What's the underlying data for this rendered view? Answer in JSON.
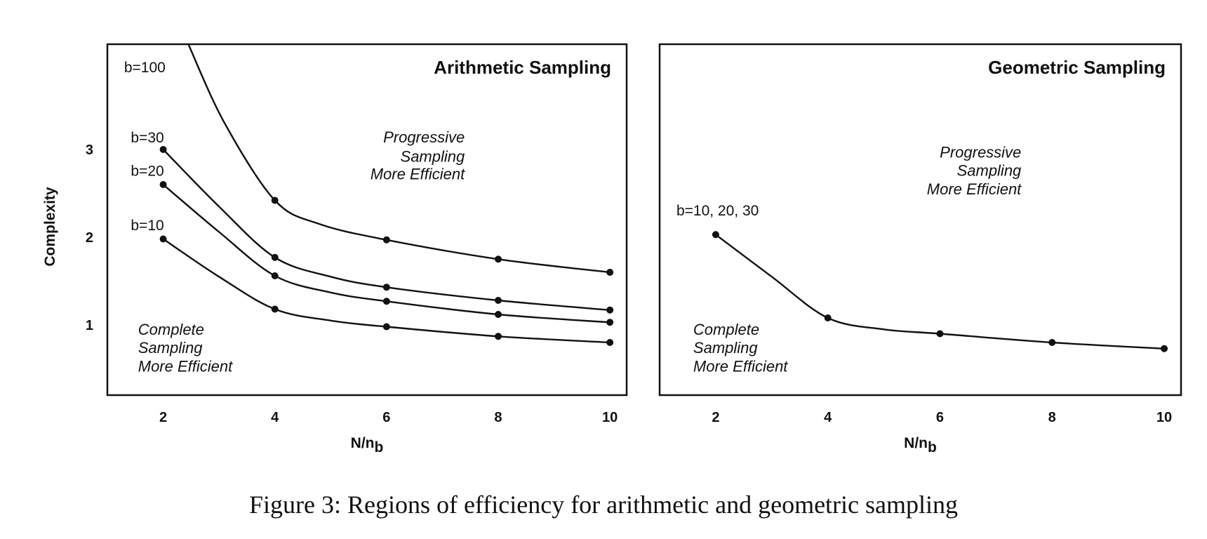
{
  "caption": "Figure 3: Regions of efficiency for arithmetic and geometric sampling",
  "chart_data": [
    {
      "type": "line",
      "title": "Arithmetic Sampling",
      "xlabel": "N/n",
      "xlabel_subscript": "b",
      "ylabel": "Complexity",
      "xticks": [
        2,
        4,
        6,
        8,
        10
      ],
      "yticks": [
        1,
        2,
        3
      ],
      "xlim": [
        1,
        10.3
      ],
      "ylim": [
        0.2,
        4.2
      ],
      "annotations": [
        {
          "lines": [
            "Progressive",
            "Sampling",
            "More Efficient"
          ],
          "x": 7.4,
          "y": [
            3.08,
            2.86,
            2.66
          ],
          "anchor": "end"
        },
        {
          "lines": [
            "Complete",
            "Sampling",
            "More Efficient"
          ],
          "x": 1.55,
          "y": [
            0.89,
            0.68,
            0.47
          ],
          "anchor": "start"
        }
      ],
      "series": [
        {
          "name": "b=100",
          "x": [
            2.45,
            3.1,
            4,
            4.8,
            6,
            8,
            10
          ],
          "y": [
            4.2,
            3.3,
            2.42,
            2.15,
            1.97,
            1.75,
            1.6
          ],
          "markers": [
            4,
            6,
            8,
            10
          ],
          "label_pos": {
            "x": 1.3,
            "y": 3.88
          }
        },
        {
          "name": "b=30",
          "x": [
            2,
            3,
            4,
            5,
            6,
            8,
            10
          ],
          "y": [
            3.0,
            2.35,
            1.77,
            1.55,
            1.43,
            1.28,
            1.17
          ],
          "markers": [
            2,
            4,
            6,
            8,
            10
          ],
          "label_pos": {
            "x": 1.42,
            "y": 3.08
          }
        },
        {
          "name": "b=20",
          "x": [
            2,
            3,
            4,
            5,
            6,
            8,
            10
          ],
          "y": [
            2.6,
            2.06,
            1.56,
            1.37,
            1.27,
            1.12,
            1.03
          ],
          "markers": [
            2,
            4,
            6,
            8,
            10
          ],
          "label_pos": {
            "x": 1.42,
            "y": 2.7
          }
        },
        {
          "name": "b=10",
          "x": [
            2,
            3,
            4,
            5,
            6,
            8,
            10
          ],
          "y": [
            1.98,
            1.55,
            1.18,
            1.05,
            0.98,
            0.87,
            0.8
          ],
          "markers": [
            2,
            4,
            6,
            8,
            10
          ],
          "label_pos": {
            "x": 1.42,
            "y": 2.08
          }
        }
      ]
    },
    {
      "type": "line",
      "title": "Geometric Sampling",
      "xlabel": "N/n",
      "xlabel_subscript": "b",
      "ylabel": "",
      "xticks": [
        2,
        4,
        6,
        8,
        10
      ],
      "yticks": [],
      "xlim": [
        1,
        10.3
      ],
      "ylim": [
        0.2,
        4.2
      ],
      "annotations": [
        {
          "lines": [
            "Progressive",
            "Sampling",
            "More Efficient"
          ],
          "x": 7.45,
          "y": [
            2.91,
            2.7,
            2.49
          ],
          "anchor": "end"
        },
        {
          "lines": [
            "Complete",
            "Sampling",
            "More Efficient"
          ],
          "x": 1.6,
          "y": [
            0.89,
            0.68,
            0.47
          ],
          "anchor": "start"
        }
      ],
      "series": [
        {
          "name": "b=10, 20, 30",
          "x": [
            2,
            3,
            4,
            5,
            6,
            8,
            10
          ],
          "y": [
            2.03,
            1.55,
            1.08,
            0.95,
            0.9,
            0.8,
            0.73
          ],
          "markers": [
            2,
            4,
            6,
            8,
            10
          ],
          "label_pos": {
            "x": 1.3,
            "y": 2.25
          }
        }
      ]
    }
  ]
}
